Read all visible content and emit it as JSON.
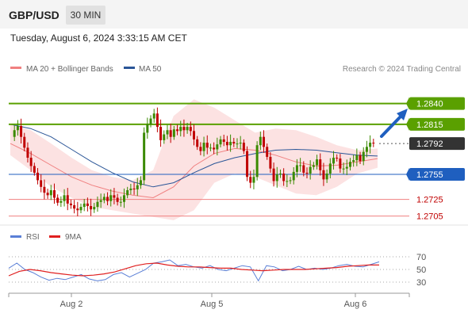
{
  "header": {
    "pair": "GBP/USD",
    "timeframe": "30 MIN",
    "datetime": "Tuesday, August 6, 2024 3:33:15 AM CET"
  },
  "legend": {
    "price": [
      {
        "label": "MA 20 + Bollinger Bands",
        "color": "#f08080"
      },
      {
        "label": "MA 50",
        "color": "#2a5597"
      }
    ],
    "credit": "Research © 2024 Trading Central",
    "rsi": [
      {
        "label": "RSI",
        "color": "#5a7fd6"
      },
      {
        "label": "9MA",
        "color": "#e02020"
      }
    ]
  },
  "colors": {
    "resistance": "#5aa000",
    "support_blue": "#1f5fbf",
    "support_red": "#f08080",
    "up": "#3a8a00",
    "down": "#c00000",
    "accent": "#1f5fbf"
  },
  "chart_data": [
    {
      "type": "candlestick",
      "title": "GBP/USD 30 MIN",
      "ylim": [
        1.2698,
        1.2852
      ],
      "x_ticks": [
        "Aug 2",
        "Aug 5",
        "Aug 6"
      ],
      "levels": [
        {
          "value": 1.284,
          "label": "1.2840",
          "kind": "resistance"
        },
        {
          "value": 1.2815,
          "label": "1.2815",
          "kind": "resistance"
        },
        {
          "value": 1.2792,
          "label": "1.2792",
          "kind": "last"
        },
        {
          "value": 1.2755,
          "label": "1.2755",
          "kind": "pivot"
        },
        {
          "value": 1.2725,
          "label": "1.2725",
          "kind": "support"
        },
        {
          "value": 1.2705,
          "label": "1.2705",
          "kind": "support"
        }
      ],
      "close_series": [
        1.28,
        1.2808,
        1.2813,
        1.28,
        1.2787,
        1.2775,
        1.2765,
        1.2757,
        1.2748,
        1.274,
        1.2733,
        1.273,
        1.2736,
        1.2727,
        1.2721,
        1.2723,
        1.273,
        1.272,
        1.2718,
        1.2714,
        1.2712,
        1.2716,
        1.272,
        1.2717,
        1.2713,
        1.2716,
        1.2722,
        1.2724,
        1.2728,
        1.2723,
        1.273,
        1.2727,
        1.2722,
        1.2722,
        1.273,
        1.2736,
        1.2738,
        1.2737,
        1.2742,
        1.2748,
        1.2805,
        1.2815,
        1.2822,
        1.2828,
        1.2812,
        1.2796,
        1.2803,
        1.2808,
        1.28,
        1.2809,
        1.2807,
        1.2812,
        1.2808,
        1.2812,
        1.2807,
        1.2797,
        1.2788,
        1.2783,
        1.2793,
        1.2787,
        1.2787,
        1.2785,
        1.2791,
        1.2797,
        1.2794,
        1.279,
        1.2794,
        1.2792,
        1.2792,
        1.2793,
        1.2783,
        1.2752,
        1.2745,
        1.2752,
        1.279,
        1.28,
        1.2788,
        1.2776,
        1.2762,
        1.2747,
        1.2755,
        1.2756,
        1.2747,
        1.2747,
        1.2748,
        1.2758,
        1.2766,
        1.2766,
        1.2757,
        1.2756,
        1.2764,
        1.2766,
        1.2773,
        1.276,
        1.2749,
        1.2756,
        1.2768,
        1.2775,
        1.2774,
        1.2762,
        1.2762,
        1.2764,
        1.277,
        1.2772,
        1.2778,
        1.2771,
        1.2782,
        1.2788,
        1.2793,
        1.2792
      ],
      "ma20_bollinger": {
        "middle": [
          1.2792,
          1.278,
          1.2766,
          1.2752,
          1.2742,
          1.2735,
          1.273,
          1.2727,
          1.274,
          1.2765,
          1.278,
          1.2786,
          1.2784,
          1.2778,
          1.277,
          1.2765,
          1.2766,
          1.277,
          1.2774
        ],
        "upper": [
          1.2815,
          1.2808,
          1.2792,
          1.2775,
          1.276,
          1.2752,
          1.2748,
          1.276,
          1.2825,
          1.2845,
          1.2835,
          1.282,
          1.2805,
          1.281,
          1.2808,
          1.28,
          1.279,
          1.2784,
          1.2786
        ],
        "lower": [
          1.2778,
          1.276,
          1.274,
          1.2727,
          1.2716,
          1.2712,
          1.2708,
          1.2704,
          1.27,
          1.2712,
          1.2745,
          1.2756,
          1.2752,
          1.2742,
          1.2732,
          1.273,
          1.274,
          1.2756,
          1.2763
        ]
      },
      "ma50": [
        1.2815,
        1.281,
        1.28,
        1.2785,
        1.277,
        1.2757,
        1.2746,
        1.274,
        1.2745,
        1.2757,
        1.2768,
        1.2775,
        1.278,
        1.2784,
        1.2785,
        1.2784,
        1.2781,
        1.2778,
        1.2777
      ]
    },
    {
      "type": "line",
      "title": "RSI",
      "ylim": [
        15,
        85
      ],
      "y_ticks": [
        70,
        50,
        30
      ],
      "series": [
        {
          "name": "RSI",
          "values": [
            52,
            60,
            50,
            45,
            38,
            33,
            36,
            34,
            38,
            42,
            35,
            32,
            34,
            42,
            45,
            38,
            44,
            50,
            60,
            62,
            65,
            56,
            58,
            54,
            52,
            56,
            50,
            48,
            52,
            56,
            54,
            32,
            56,
            54,
            48,
            50,
            55,
            50,
            52,
            50,
            52,
            56,
            58,
            55,
            54,
            58,
            62
          ]
        },
        {
          "name": "9MA",
          "values": [
            40,
            47,
            50,
            48,
            45,
            43,
            41,
            40,
            41,
            43,
            46,
            51,
            56,
            59,
            60,
            57,
            55,
            54,
            54,
            53,
            52,
            52,
            50,
            49,
            48,
            49,
            50,
            50,
            50,
            51,
            52,
            53,
            55,
            56,
            57,
            57
          ]
        }
      ]
    }
  ]
}
